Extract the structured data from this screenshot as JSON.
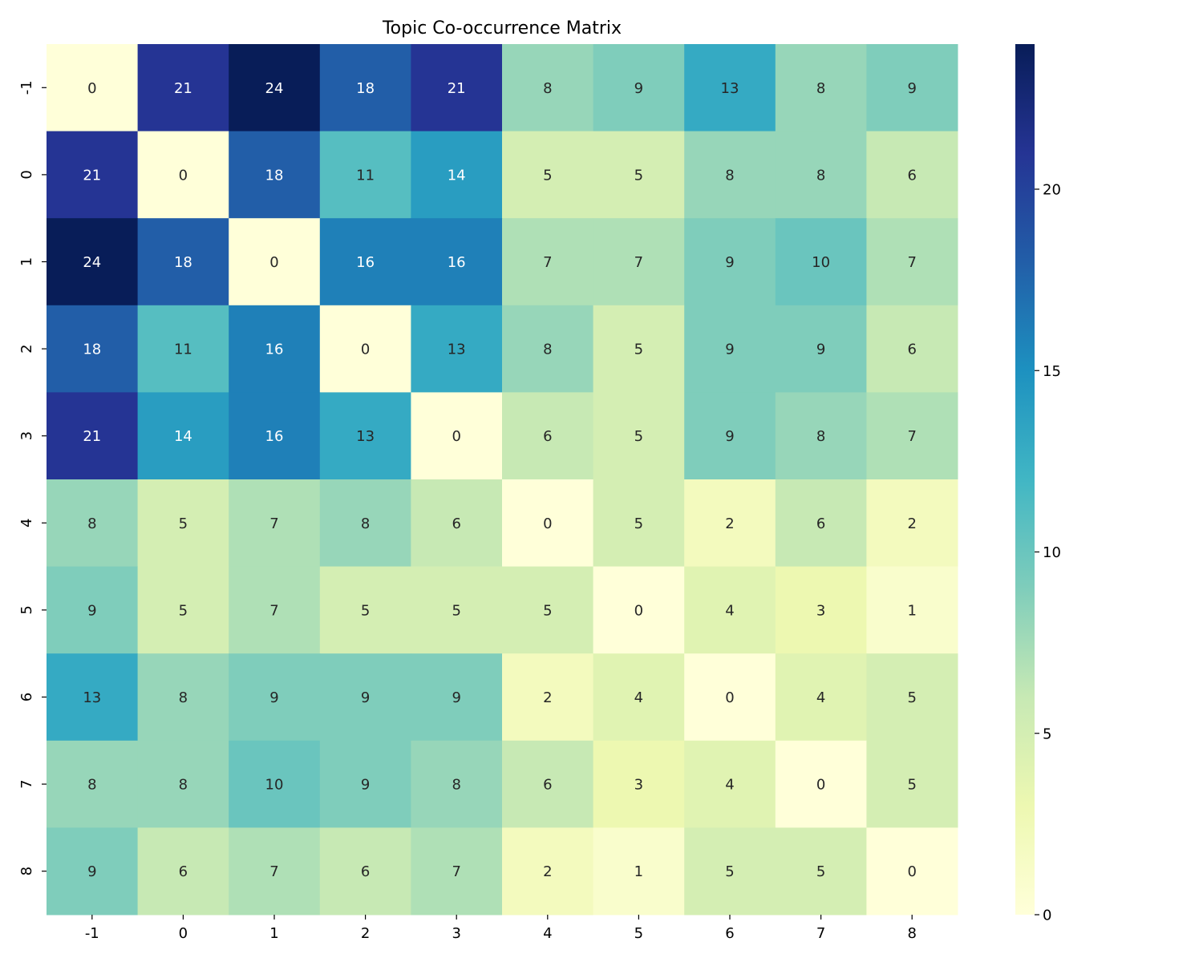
{
  "colors": {
    "scale_stops": [
      "#ffffd9",
      "#edf8b1",
      "#c7e9b4",
      "#7fcdbb",
      "#41b6c4",
      "#1d91c0",
      "#225ea8",
      "#253494",
      "#081d58"
    ],
    "text_dark": "#262626",
    "text_light": "#ffffff"
  },
  "chart_data": {
    "type": "heatmap",
    "title": "Topic Co-occurrence Matrix",
    "xlabel": "",
    "ylabel": "",
    "x_categories": [
      "-1",
      "0",
      "1",
      "2",
      "3",
      "4",
      "5",
      "6",
      "7",
      "8"
    ],
    "y_categories": [
      "-1",
      "0",
      "1",
      "2",
      "3",
      "4",
      "5",
      "6",
      "7",
      "8"
    ],
    "values": [
      [
        0,
        21,
        24,
        18,
        21,
        8,
        9,
        13,
        8,
        9
      ],
      [
        21,
        0,
        18,
        11,
        14,
        5,
        5,
        8,
        8,
        6
      ],
      [
        24,
        18,
        0,
        16,
        16,
        7,
        7,
        9,
        10,
        7
      ],
      [
        18,
        11,
        16,
        0,
        13,
        8,
        5,
        9,
        9,
        6
      ],
      [
        21,
        14,
        16,
        13,
        0,
        6,
        5,
        9,
        8,
        7
      ],
      [
        8,
        5,
        7,
        8,
        6,
        0,
        5,
        2,
        6,
        2
      ],
      [
        9,
        5,
        7,
        5,
        5,
        5,
        0,
        4,
        3,
        1
      ],
      [
        13,
        8,
        9,
        9,
        9,
        2,
        4,
        0,
        4,
        5
      ],
      [
        8,
        8,
        10,
        9,
        8,
        6,
        3,
        4,
        0,
        5
      ],
      [
        9,
        6,
        7,
        6,
        7,
        2,
        1,
        5,
        5,
        0
      ]
    ],
    "colormap": "YlGnBu",
    "vmin": 0,
    "vmax": 24,
    "annotated": true,
    "colorbar": {
      "ticks": [
        0,
        5,
        10,
        15,
        20
      ],
      "tick_labels": [
        "0",
        "5",
        "10",
        "15",
        "20"
      ]
    },
    "grid": false,
    "legend": "none"
  }
}
